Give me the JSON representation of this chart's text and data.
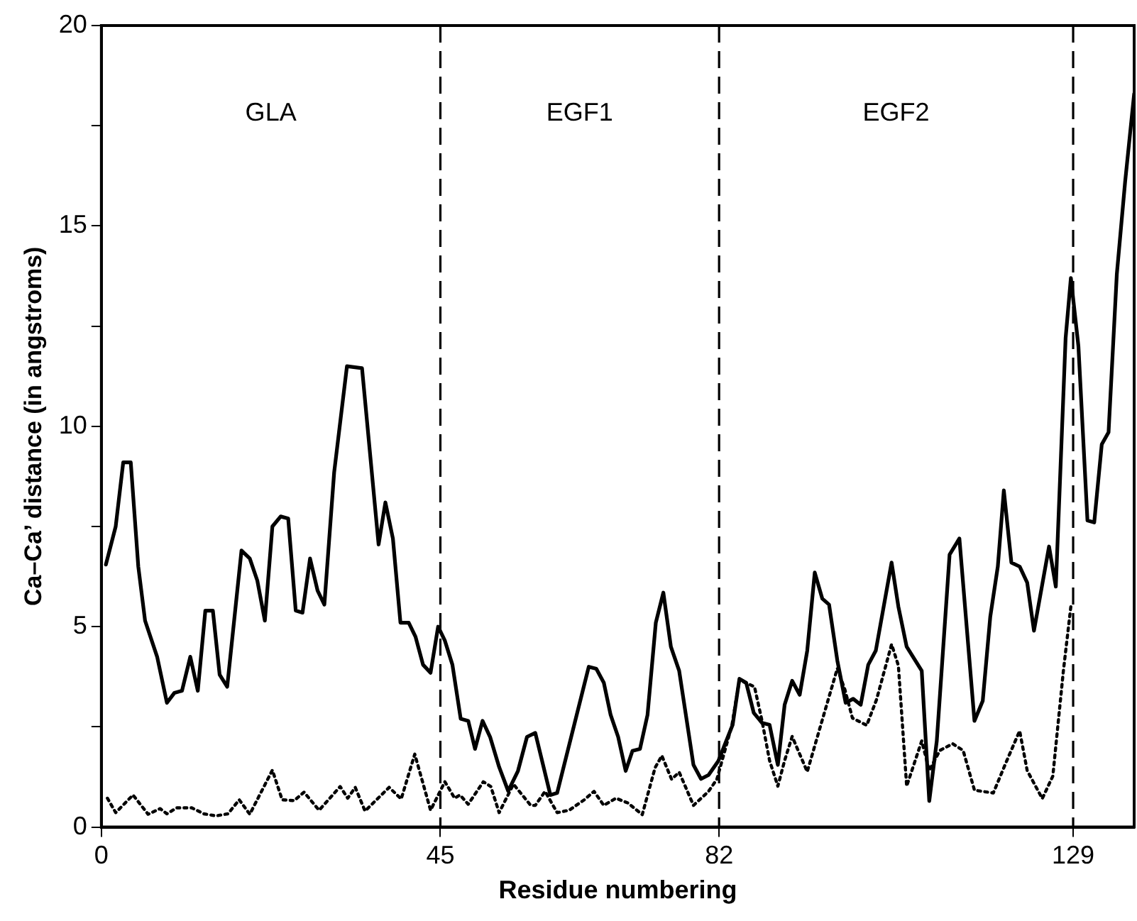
{
  "chart_data": {
    "type": "line",
    "xlabel": "Residue numbering",
    "ylabel": "Ca–Ca’ distance (in angstroms)",
    "xlim": [
      0,
      137.1
    ],
    "xticks": [
      0,
      45,
      82,
      129
    ],
    "ylim": [
      0,
      20
    ],
    "yticks": [
      0,
      {
        "value": 2.5,
        "label": null
      },
      5,
      {
        "value": 7.5,
        "label": null
      },
      10,
      {
        "value": 12.5,
        "label": null
      },
      15,
      {
        "value": 17.5,
        "label": null
      },
      20
    ],
    "grid": false,
    "legend": false,
    "marker": "none",
    "ref_lines": [
      {
        "axis": "x",
        "value": 45,
        "line_style": "dashed",
        "color": "#000000"
      },
      {
        "axis": "x",
        "value": 82,
        "line_style": "dashed",
        "color": "#000000"
      },
      {
        "axis": "x",
        "value": 129,
        "line_style": "dashed",
        "color": "#000000"
      }
    ],
    "annotations": [
      "GLA",
      "EGF1",
      "EGF2"
    ],
    "series": [
      {
        "color": "#000000",
        "line_style": "solid",
        "x": [
          0.6,
          1.9,
          2.9,
          3.9,
          4.9,
          5.8,
          7.4,
          8.7,
          9.7,
          10.7,
          11.8,
          12.8,
          13.8,
          14.8,
          15.7,
          16.7,
          18.6,
          19.7,
          20.7,
          21.7,
          22.7,
          23.8,
          24.8,
          25.8,
          26.7,
          27.7,
          28.7,
          29.6,
          30.9,
          32.6,
          34.6,
          36.8,
          37.7,
          38.7,
          39.7,
          40.8,
          41.7,
          42.7,
          43.7,
          44.7,
          45.6,
          46.6,
          47.7,
          48.7,
          49.6,
          50.6,
          51.6,
          52.8,
          54.0,
          55.3,
          56.5,
          57.6,
          59.6,
          60.5,
          64.7,
          65.7,
          66.7,
          67.6,
          68.6,
          69.6,
          70.5,
          71.5,
          72.5,
          73.6,
          74.6,
          75.6,
          76.7,
          78.6,
          79.6,
          80.6,
          81.9,
          83.8,
          84.7,
          85.6,
          86.6,
          87.7,
          88.7,
          89.8,
          90.7,
          91.7,
          92.7,
          93.7,
          94.7,
          95.7,
          96.6,
          97.7,
          98.8,
          99.8,
          100.8,
          101.8,
          102.8,
          104.9,
          105.8,
          106.9,
          108.9,
          109.9,
          110.9,
          112.6,
          113.9,
          115.9,
          117.0,
          118.0,
          119.0,
          119.8,
          120.8,
          121.9,
          122.9,
          123.8,
          125.8,
          126.7,
          128.0,
          128.7,
          129.7,
          130.9,
          131.8,
          132.8,
          133.7,
          134.8,
          135.9,
          137.1
        ],
        "values": [
          6.55,
          7.5,
          9.1,
          9.1,
          6.5,
          5.15,
          4.25,
          3.1,
          3.35,
          3.4,
          4.25,
          3.4,
          5.4,
          5.4,
          3.8,
          3.5,
          6.9,
          6.7,
          6.15,
          5.15,
          7.5,
          7.75,
          7.7,
          5.4,
          5.35,
          6.7,
          5.9,
          5.55,
          8.85,
          11.5,
          11.45,
          7.05,
          8.1,
          7.2,
          5.1,
          5.1,
          4.75,
          4.05,
          3.85,
          5.0,
          4.65,
          4.05,
          2.7,
          2.65,
          1.95,
          2.65,
          2.25,
          1.5,
          0.9,
          1.4,
          2.25,
          2.35,
          0.8,
          0.85,
          4.0,
          3.95,
          3.6,
          2.8,
          2.25,
          1.4,
          1.9,
          1.95,
          2.8,
          5.1,
          5.85,
          4.5,
          3.9,
          1.55,
          1.2,
          1.3,
          1.65,
          2.55,
          3.7,
          3.6,
          2.85,
          2.6,
          2.55,
          1.55,
          3.05,
          3.65,
          3.3,
          4.4,
          6.35,
          5.7,
          5.55,
          4.15,
          3.1,
          3.2,
          3.05,
          4.05,
          4.4,
          6.6,
          5.5,
          4.5,
          3.9,
          0.65,
          2.15,
          6.8,
          7.2,
          2.65,
          3.15,
          5.25,
          6.5,
          8.4,
          6.6,
          6.5,
          6.1,
          4.9,
          7.0,
          6.0,
          12.2,
          13.7,
          12.0,
          7.65,
          7.6,
          9.55,
          9.85,
          13.8,
          16.1,
          18.3
        ]
      },
      {
        "color": "#000000",
        "line_style": "dotted",
        "x": [
          0.8,
          1.9,
          4.2,
          6.2,
          7.8,
          8.7,
          10.0,
          12.0,
          13.6,
          15.2,
          16.8,
          18.3,
          19.7,
          22.7,
          24.0,
          25.6,
          26.9,
          28.9,
          31.7,
          32.7,
          33.7,
          35.0,
          38.2,
          39.8,
          41.6,
          43.7,
          45.6,
          46.9,
          47.6,
          48.7,
          50.7,
          51.7,
          52.8,
          54.7,
          57.0,
          57.6,
          58.9,
          60.5,
          62.1,
          64.1,
          65.4,
          66.7,
          68.3,
          69.9,
          71.8,
          73.5,
          74.4,
          75.7,
          76.7,
          78.6,
          80.6,
          81.7,
          82.4,
          83.7,
          84.7,
          86.7,
          87.7,
          88.7,
          89.8,
          90.7,
          91.7,
          93.7,
          95.6,
          97.7,
          98.7,
          99.7,
          101.6,
          102.9,
          104.9,
          105.8,
          106.9,
          108.9,
          109.9,
          111.3,
          113.0,
          114.4,
          115.9,
          118.4,
          120.2,
          121.9,
          122.9,
          124.9,
          126.3,
          127.7,
          128.7
        ],
        "values": [
          0.72,
          0.36,
          0.8,
          0.32,
          0.46,
          0.33,
          0.48,
          0.48,
          0.33,
          0.28,
          0.33,
          0.68,
          0.32,
          1.42,
          0.68,
          0.66,
          0.87,
          0.42,
          1.01,
          0.72,
          0.99,
          0.4,
          0.99,
          0.7,
          1.82,
          0.42,
          1.13,
          0.72,
          0.8,
          0.57,
          1.13,
          1.01,
          0.36,
          1.07,
          0.54,
          0.54,
          0.89,
          0.36,
          0.42,
          0.68,
          0.89,
          0.54,
          0.72,
          0.6,
          0.31,
          1.48,
          1.78,
          1.19,
          1.37,
          0.54,
          0.89,
          1.19,
          1.66,
          2.54,
          3.67,
          3.5,
          2.65,
          1.66,
          1.02,
          1.66,
          2.26,
          1.38,
          2.61,
          3.96,
          3.43,
          2.72,
          2.54,
          3.18,
          4.56,
          4.03,
          1.02,
          2.15,
          1.41,
          1.91,
          2.08,
          1.91,
          0.92,
          0.85,
          1.66,
          2.4,
          1.41,
          0.71,
          1.27,
          3.89,
          5.51
        ]
      }
    ]
  }
}
